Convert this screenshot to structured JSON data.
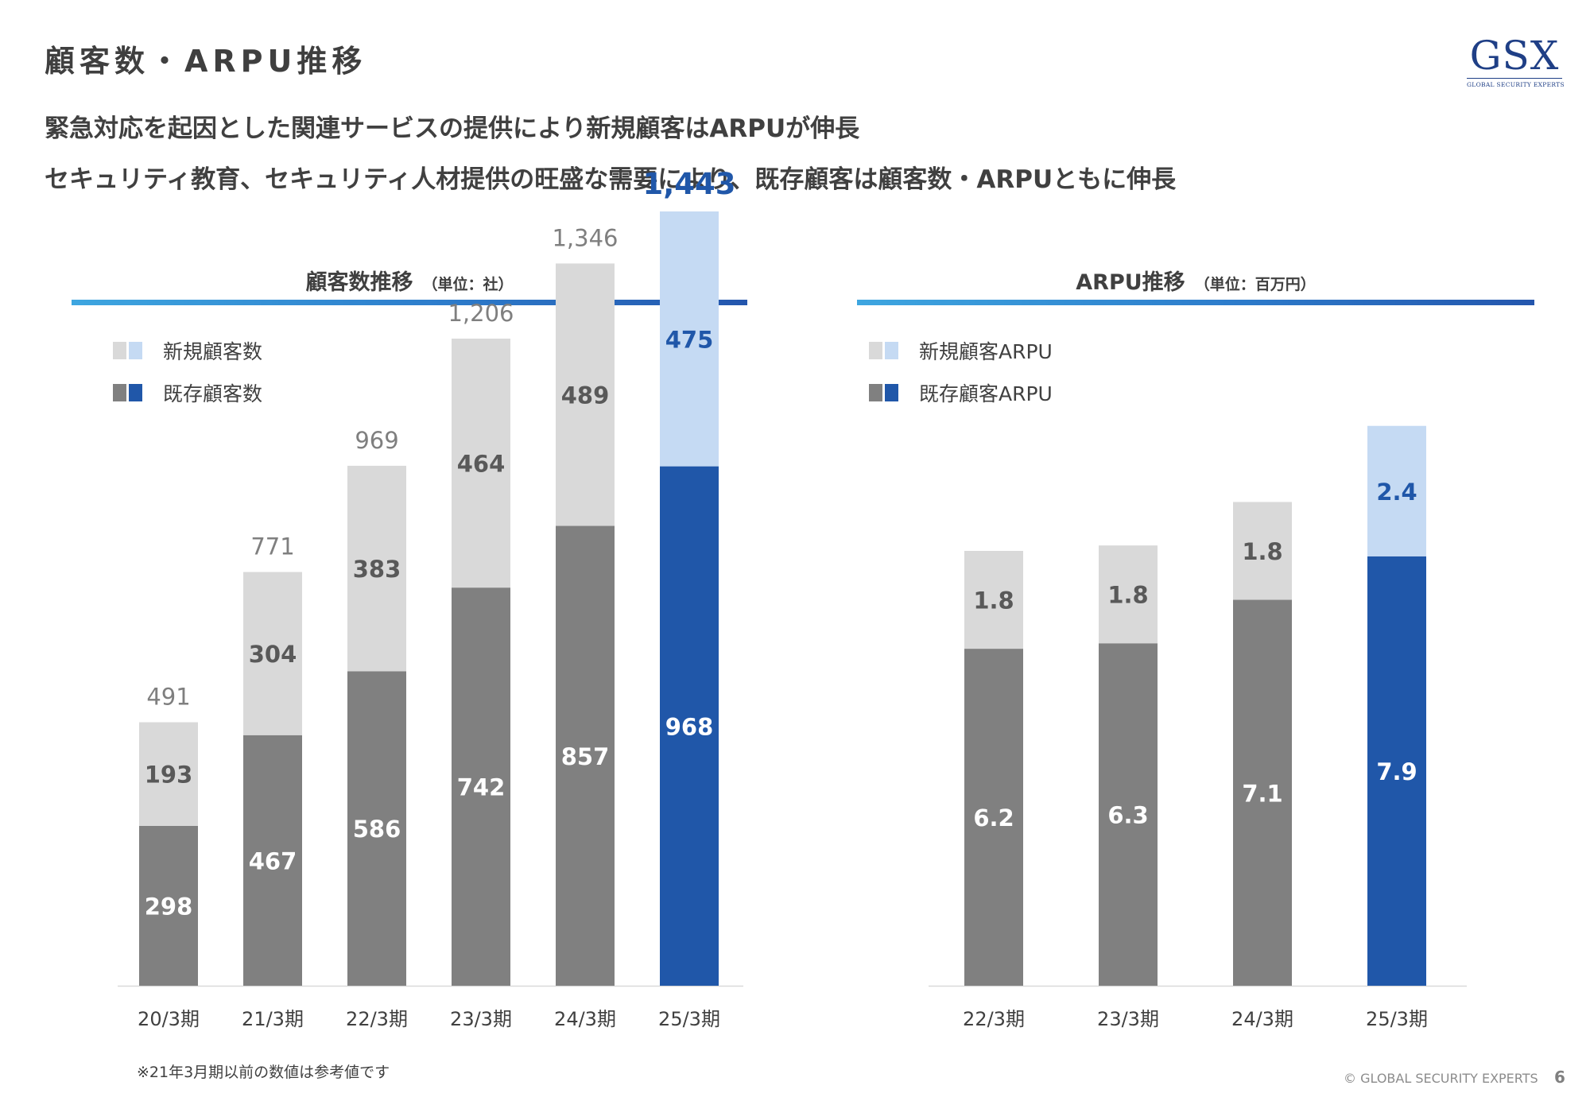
{
  "title": "顧客数・ARPU推移",
  "logo": {
    "mark": "GSX",
    "sub": "GLOBAL SECURITY EXPERTS"
  },
  "headlines": [
    "緊急対応を起因とした関連サービスの提供により新規顧客はARPUが伸長",
    "セキュリティ教育、セキュリティ人材提供の旺盛な需要により、既存顧客は顧客数・ARPUともに伸長"
  ],
  "colors": {
    "new_gray": "#d9d9d9",
    "existing_gray": "#808080",
    "new_blue": "#c5daf3",
    "existing_blue": "#2057a9",
    "total_gray": "#7f7f7f",
    "total_highlight": "#2057a9"
  },
  "left_panel": {
    "title": "顧客数推移",
    "unit": "（単位：社）",
    "legend": [
      "新規顧客数",
      "既存顧客数"
    ]
  },
  "right_panel": {
    "title": "ARPU推移",
    "unit": "（単位：百万円）",
    "legend": [
      "新規顧客ARPU",
      "既存顧客ARPU"
    ]
  },
  "chart_data": [
    {
      "type": "bar",
      "stacked": true,
      "title": "顧客数推移",
      "unit": "（単位：社）",
      "categories": [
        "20/3期",
        "21/3期",
        "22/3期",
        "23/3期",
        "24/3期",
        "25/3期"
      ],
      "series": [
        {
          "name": "既存顧客数",
          "values": [
            298,
            467,
            586,
            742,
            857,
            968
          ]
        },
        {
          "name": "新規顧客数",
          "values": [
            193,
            304,
            383,
            464,
            489,
            475
          ]
        }
      ],
      "totals": [
        "491",
        "771",
        "969",
        "1,206",
        "1,346",
        "1,443"
      ],
      "highlight_index": 5,
      "ylim": [
        0,
        1600
      ],
      "grid": false,
      "legend_position": "top-left"
    },
    {
      "type": "bar",
      "stacked": true,
      "title": "ARPU推移",
      "unit": "（単位：百万円）",
      "categories": [
        "22/3期",
        "23/3期",
        "24/3期",
        "25/3期"
      ],
      "series": [
        {
          "name": "既存顧客ARPU",
          "values": [
            6.2,
            6.3,
            7.1,
            7.9
          ]
        },
        {
          "name": "新規顧客ARPU",
          "values": [
            1.8,
            1.8,
            1.8,
            2.4
          ]
        }
      ],
      "highlight_index": 3,
      "ylim": [
        0,
        11.7
      ],
      "grid": false,
      "legend_position": "top-left"
    }
  ],
  "footnote": "※21年3月期以前の数値は参考値です",
  "copyright": "© GLOBAL SECURITY EXPERTS",
  "page_number": "6"
}
